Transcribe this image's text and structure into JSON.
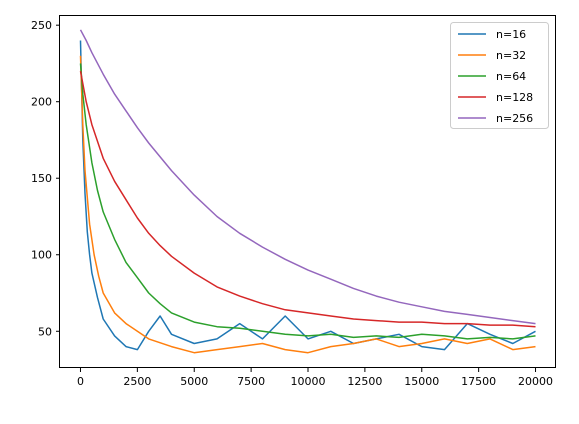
{
  "chart_data": {
    "type": "line",
    "title": "",
    "xlabel": "",
    "ylabel": "",
    "xlim": [
      -900,
      20900
    ],
    "ylim": [
      26,
      256
    ],
    "grid": false,
    "legend_position": "top-right",
    "x_ticks": [
      0,
      2500,
      5000,
      7500,
      10000,
      12500,
      15000,
      17500,
      20000
    ],
    "x_tick_labels": [
      "0",
      "2500",
      "5000",
      "7500",
      "10000",
      "12500",
      "15000",
      "17500",
      "20000"
    ],
    "y_ticks": [
      50,
      100,
      150,
      200,
      250
    ],
    "y_tick_labels": [
      "50",
      "100",
      "150",
      "200",
      "250"
    ],
    "series": [
      {
        "name": "n=16",
        "color": "#1f77b4",
        "x": [
          0,
          100,
          200,
          300,
          400,
          500,
          750,
          1000,
          1500,
          2000,
          2500,
          3000,
          3500,
          4000,
          5000,
          6000,
          7000,
          8000,
          9000,
          10000,
          11000,
          12000,
          13000,
          14000,
          15000,
          16000,
          17000,
          18000,
          19000,
          20000
        ],
        "y": [
          240,
          175,
          140,
          115,
          100,
          88,
          72,
          58,
          47,
          40,
          38,
          50,
          60,
          48,
          42,
          45,
          55,
          45,
          60,
          45,
          50,
          42,
          45,
          48,
          40,
          38,
          55,
          48,
          42,
          50
        ]
      },
      {
        "name": "n=32",
        "color": "#ff7f0e",
        "x": [
          0,
          100,
          200,
          400,
          600,
          800,
          1000,
          1500,
          2000,
          2500,
          3000,
          4000,
          5000,
          6000,
          7000,
          8000,
          9000,
          10000,
          11000,
          12000,
          13000,
          14000,
          15000,
          16000,
          17000,
          18000,
          19000,
          20000
        ],
        "y": [
          230,
          185,
          155,
          120,
          100,
          86,
          75,
          62,
          55,
          50,
          45,
          40,
          36,
          38,
          40,
          42,
          38,
          36,
          40,
          42,
          45,
          40,
          42,
          45,
          42,
          45,
          38,
          40
        ]
      },
      {
        "name": "n=64",
        "color": "#2ca02c",
        "x": [
          0,
          100,
          250,
          500,
          750,
          1000,
          1500,
          2000,
          2500,
          3000,
          3500,
          4000,
          5000,
          6000,
          7000,
          8000,
          9000,
          10000,
          11000,
          12000,
          13000,
          14000,
          15000,
          16000,
          17000,
          18000,
          19000,
          20000
        ],
        "y": [
          225,
          205,
          185,
          160,
          142,
          128,
          110,
          95,
          85,
          75,
          68,
          62,
          56,
          53,
          52,
          50,
          48,
          47,
          48,
          46,
          47,
          46,
          48,
          47,
          45,
          46,
          45,
          47
        ]
      },
      {
        "name": "n=128",
        "color": "#d62728",
        "x": [
          0,
          250,
          500,
          1000,
          1500,
          2000,
          2500,
          3000,
          3500,
          4000,
          5000,
          6000,
          7000,
          8000,
          9000,
          10000,
          11000,
          12000,
          13000,
          14000,
          15000,
          16000,
          17000,
          18000,
          19000,
          20000
        ],
        "y": [
          220,
          200,
          185,
          163,
          148,
          136,
          124,
          114,
          106,
          99,
          88,
          79,
          73,
          68,
          64,
          62,
          60,
          58,
          57,
          56,
          56,
          55,
          55,
          54,
          54,
          53
        ]
      },
      {
        "name": "n=256",
        "color": "#9467bd",
        "x": [
          0,
          250,
          500,
          1000,
          1500,
          2000,
          2500,
          3000,
          4000,
          5000,
          6000,
          7000,
          8000,
          9000,
          10000,
          11000,
          12000,
          13000,
          14000,
          15000,
          16000,
          17000,
          18000,
          19000,
          20000
        ],
        "y": [
          247,
          240,
          232,
          218,
          205,
          194,
          183,
          173,
          155,
          139,
          125,
          114,
          105,
          97,
          90,
          84,
          78,
          73,
          69,
          66,
          63,
          61,
          59,
          57,
          55
        ]
      }
    ]
  }
}
